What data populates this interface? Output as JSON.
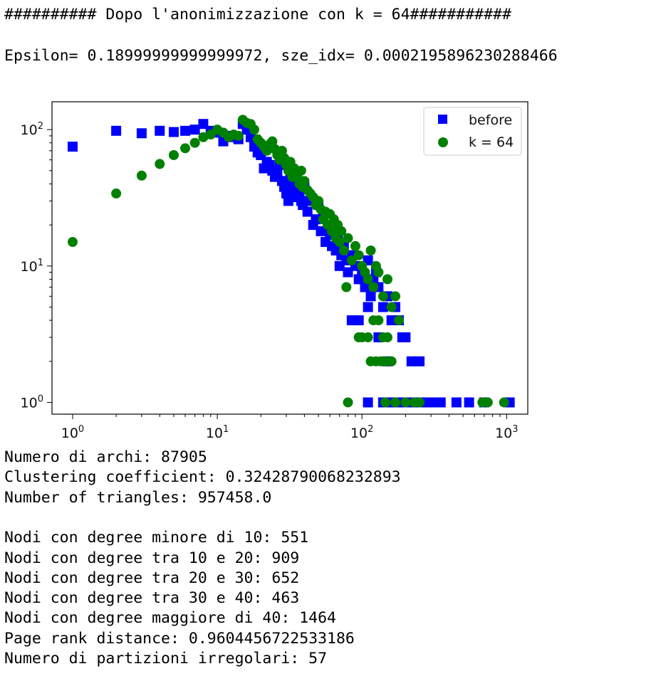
{
  "header": {
    "title": "########## Dopo l'anonimizzazione con k = 64###########",
    "params": "Epsilon= 0.18999999999999972, sze_idx= 0.0002195896230288466"
  },
  "stats": [
    "Numero di archi: 87905",
    "Clustering coefficient: 0.32428790068232893",
    "Number of triangles: 957458.0",
    "",
    "Nodi con degree minore di 10: 551",
    "Nodi con degree tra 10 e 20: 909",
    "Nodi con degree tra 20 e 30: 652",
    "Nodi con degree tra 30 e 40: 463",
    "Nodi con degree maggiore di 40: 1464",
    "Page rank distance: 0.9604456722533186",
    "Numero di partizioni irregolari: 57"
  ],
  "chart_data": {
    "type": "scatter",
    "title": "",
    "xlabel": "",
    "ylabel": "",
    "xscale": "log",
    "yscale": "log",
    "xlim": [
      0.72,
      1400
    ],
    "ylim": [
      0.82,
      160
    ],
    "xticks": [
      1,
      10,
      100,
      1000
    ],
    "xtick_labels": [
      "10^0",
      "10^1",
      "10^2",
      "10^3"
    ],
    "yticks": [
      1,
      10,
      100
    ],
    "ytick_labels": [
      "10^0",
      "10^1",
      "10^2"
    ],
    "grid": false,
    "legend": "top-right",
    "series": [
      {
        "name": "before",
        "marker": "square",
        "color": "#0000ff",
        "points": [
          [
            1,
            75
          ],
          [
            2,
            98
          ],
          [
            3,
            94
          ],
          [
            4,
            98
          ],
          [
            5,
            96
          ],
          [
            6,
            98
          ],
          [
            7,
            100
          ],
          [
            8,
            110
          ],
          [
            9,
            98
          ],
          [
            10,
            95
          ],
          [
            11,
            82
          ],
          [
            12,
            90
          ],
          [
            13,
            88
          ],
          [
            14,
            85
          ],
          [
            15,
            110
          ],
          [
            16,
            100
          ],
          [
            17,
            88
          ],
          [
            18,
            75
          ],
          [
            19,
            68
          ],
          [
            20,
            65
          ],
          [
            21,
            52
          ],
          [
            22,
            58
          ],
          [
            23,
            55
          ],
          [
            24,
            50
          ],
          [
            25,
            45
          ],
          [
            26,
            48
          ],
          [
            27,
            55
          ],
          [
            28,
            42
          ],
          [
            29,
            38
          ],
          [
            30,
            34
          ],
          [
            31,
            30
          ],
          [
            32,
            45
          ],
          [
            33,
            40
          ],
          [
            34,
            35
          ],
          [
            35,
            32
          ],
          [
            36,
            40
          ],
          [
            37,
            35
          ],
          [
            38,
            30
          ],
          [
            39,
            28
          ],
          [
            40,
            38
          ],
          [
            42,
            25
          ],
          [
            44,
            30
          ],
          [
            46,
            20
          ],
          [
            48,
            22
          ],
          [
            50,
            28
          ],
          [
            52,
            18
          ],
          [
            54,
            24
          ],
          [
            56,
            15
          ],
          [
            58,
            20
          ],
          [
            60,
            17
          ],
          [
            62,
            14
          ],
          [
            64,
            18
          ],
          [
            66,
            13
          ],
          [
            68,
            16
          ],
          [
            70,
            10
          ],
          [
            72,
            12
          ],
          [
            75,
            14
          ],
          [
            78,
            11
          ],
          [
            80,
            9
          ],
          [
            85,
            12
          ],
          [
            90,
            10
          ],
          [
            95,
            8
          ],
          [
            100,
            9
          ],
          [
            105,
            7
          ],
          [
            110,
            11
          ],
          [
            115,
            6
          ],
          [
            120,
            8
          ],
          [
            125,
            9
          ],
          [
            130,
            7
          ],
          [
            140,
            5
          ],
          [
            150,
            6
          ],
          [
            160,
            4
          ],
          [
            170,
            5
          ],
          [
            180,
            4
          ],
          [
            190,
            3
          ],
          [
            200,
            3
          ],
          [
            220,
            2
          ],
          [
            250,
            2
          ],
          [
            85,
            4
          ],
          [
            95,
            4
          ],
          [
            110,
            5
          ],
          [
            130,
            3
          ],
          [
            150,
            2
          ],
          [
            110,
            1
          ],
          [
            140,
            1
          ],
          [
            160,
            1
          ],
          [
            180,
            1
          ],
          [
            200,
            1
          ],
          [
            230,
            1
          ],
          [
            260,
            1
          ],
          [
            300,
            1
          ],
          [
            350,
            1
          ],
          [
            450,
            1
          ],
          [
            550,
            1
          ],
          [
            700,
            1
          ],
          [
            1050,
            1
          ]
        ]
      },
      {
        "name": "k = 64",
        "marker": "circle",
        "color": "#008000",
        "points": [
          [
            1,
            15
          ],
          [
            2,
            34
          ],
          [
            3,
            46
          ],
          [
            4,
            56
          ],
          [
            5,
            65
          ],
          [
            6,
            73
          ],
          [
            7,
            80
          ],
          [
            8,
            88
          ],
          [
            9,
            92
          ],
          [
            10,
            100
          ],
          [
            11,
            95
          ],
          [
            12,
            88
          ],
          [
            13,
            92
          ],
          [
            14,
            90
          ],
          [
            15,
            118
          ],
          [
            16,
            112
          ],
          [
            17,
            110
          ],
          [
            18,
            100
          ],
          [
            19,
            85
          ],
          [
            20,
            80
          ],
          [
            21,
            75
          ],
          [
            22,
            70
          ],
          [
            23,
            78
          ],
          [
            24,
            82
          ],
          [
            25,
            72
          ],
          [
            26,
            65
          ],
          [
            27,
            60
          ],
          [
            28,
            70
          ],
          [
            29,
            62
          ],
          [
            30,
            55
          ],
          [
            31,
            50
          ],
          [
            32,
            58
          ],
          [
            33,
            45
          ],
          [
            34,
            52
          ],
          [
            35,
            48
          ],
          [
            36,
            44
          ],
          [
            37,
            40
          ],
          [
            38,
            50
          ],
          [
            39,
            38
          ],
          [
            40,
            42
          ],
          [
            42,
            36
          ],
          [
            44,
            34
          ],
          [
            46,
            32
          ],
          [
            48,
            28
          ],
          [
            50,
            30
          ],
          [
            52,
            26
          ],
          [
            54,
            22
          ],
          [
            56,
            25
          ],
          [
            58,
            20
          ],
          [
            60,
            24
          ],
          [
            62,
            18
          ],
          [
            64,
            22
          ],
          [
            66,
            16
          ],
          [
            68,
            20
          ],
          [
            70,
            15
          ],
          [
            72,
            18
          ],
          [
            75,
            13
          ],
          [
            78,
            7
          ],
          [
            80,
            16
          ],
          [
            85,
            11
          ],
          [
            90,
            14
          ],
          [
            95,
            12
          ],
          [
            100,
            10
          ],
          [
            105,
            9
          ],
          [
            110,
            8
          ],
          [
            115,
            13
          ],
          [
            120,
            7
          ],
          [
            125,
            10
          ],
          [
            130,
            9
          ],
          [
            140,
            6
          ],
          [
            150,
            8
          ],
          [
            160,
            5
          ],
          [
            170,
            6
          ],
          [
            180,
            4
          ],
          [
            100,
            3
          ],
          [
            110,
            3
          ],
          [
            120,
            4
          ],
          [
            130,
            4
          ],
          [
            140,
            3
          ],
          [
            150,
            3
          ],
          [
            115,
            2
          ],
          [
            125,
            2
          ],
          [
            135,
            2
          ],
          [
            145,
            2
          ],
          [
            160,
            2
          ],
          [
            95,
            3
          ],
          [
            80,
            1
          ],
          [
            145,
            1
          ],
          [
            170,
            1
          ],
          [
            200,
            1
          ],
          [
            230,
            1
          ],
          [
            250,
            1
          ],
          [
            680,
            1
          ],
          [
            740,
            1
          ],
          [
            960,
            1
          ]
        ]
      }
    ]
  }
}
